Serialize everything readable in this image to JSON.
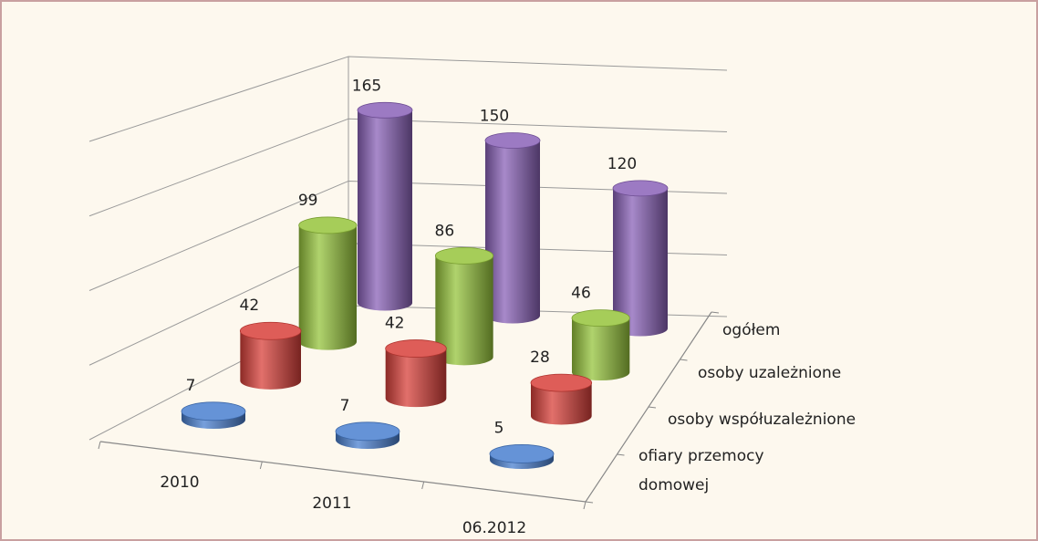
{
  "chart_data": {
    "type": "bar3d-cylinder",
    "categories": [
      "2010",
      "2011",
      "06.2012"
    ],
    "series": [
      {
        "name": "ofiary przemocy domowej",
        "color": "#4a80d0",
        "values": [
          7,
          7,
          5
        ]
      },
      {
        "name": "osoby współuzależnione",
        "color": "#d8403a",
        "values": [
          42,
          42,
          28
        ]
      },
      {
        "name": "osoby uzależnione",
        "color": "#96c43c",
        "values": [
          99,
          86,
          46
        ]
      },
      {
        "name": "ogółem",
        "color": "#8a62b8",
        "values": [
          165,
          150,
          120
        ]
      }
    ],
    "ylim": [
      0,
      200
    ],
    "yticks": [
      0,
      50,
      100,
      150,
      200
    ],
    "grid": true
  }
}
